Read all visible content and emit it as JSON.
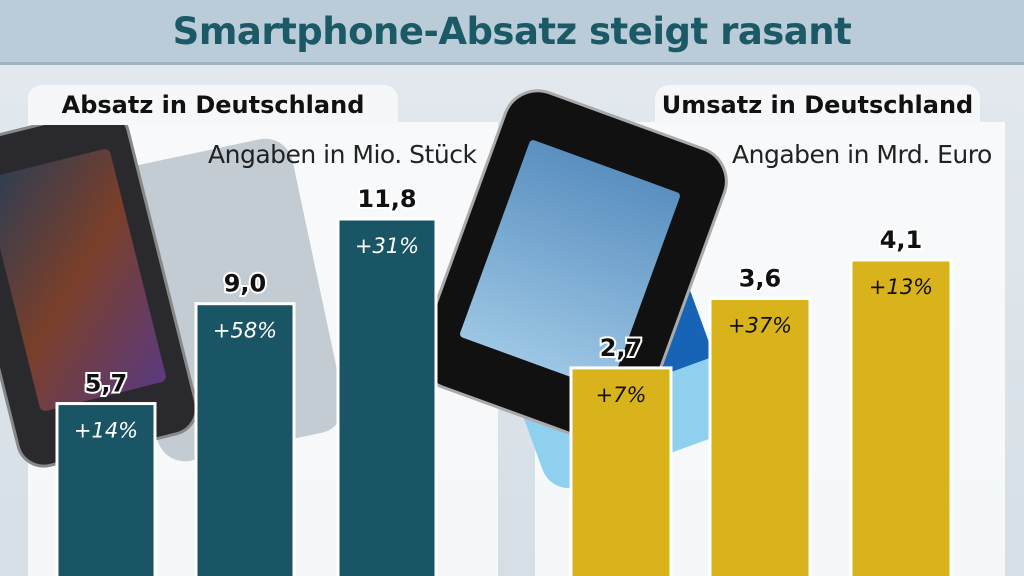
{
  "title": "Smartphone-Absatz steigt rasant",
  "colors": {
    "teal": "#1a5565",
    "gold": "#d9b31b",
    "title": "#1c5967"
  },
  "chart_data": [
    {
      "type": "bar",
      "title": "Absatz in Deutschland",
      "subtitle": "Angaben in Mio. Stück",
      "values": [
        5.7,
        9.0,
        11.8
      ],
      "value_labels": [
        "5,7",
        "9,0",
        "11,8"
      ],
      "change_labels": [
        "+14%",
        "+58%",
        "+31%"
      ],
      "color": "#1a5565"
    },
    {
      "type": "bar",
      "title": "Umsatz in Deutschland",
      "subtitle": "Angaben in Mrd. Euro",
      "values": [
        2.7,
        3.6,
        4.1
      ],
      "value_labels": [
        "2,7",
        "3,6",
        "4,1"
      ],
      "change_labels": [
        "+7%",
        "+37%",
        "+13%"
      ],
      "color": "#d9b31b"
    }
  ]
}
